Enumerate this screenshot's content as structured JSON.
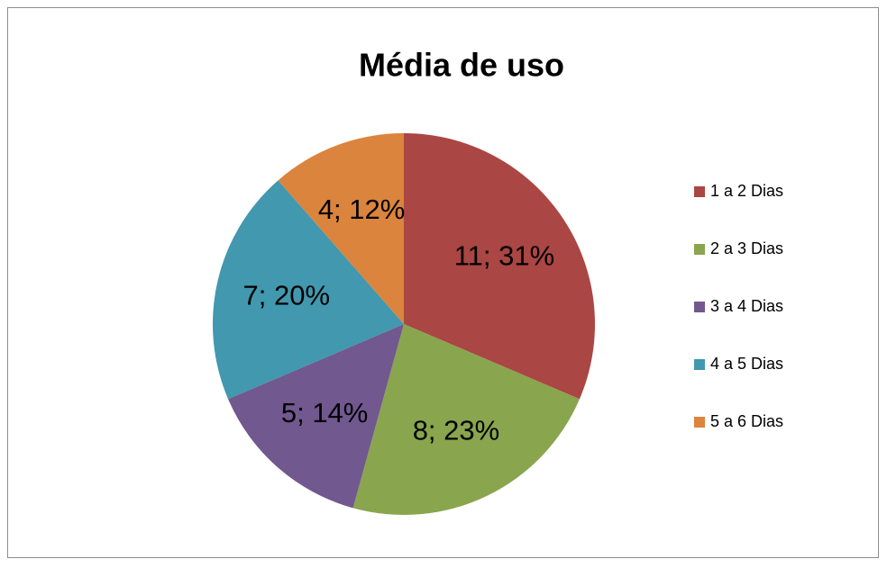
{
  "chart_data": {
    "type": "pie",
    "title": "Média de uso",
    "categories": [
      "1 a 2 Dias",
      "2 a 3 Dias",
      "3 a 4 Dias",
      "4 a 5 Dias",
      "5 a 6 Dias"
    ],
    "values": [
      11,
      8,
      5,
      7,
      4
    ],
    "value_labels": [
      "11; 31%",
      "8; 23%",
      "5; 14%",
      "7; 20%",
      "4; 12%"
    ],
    "colors": [
      "#aa4643",
      "#89a54e",
      "#71588f",
      "#4198af",
      "#db843d"
    ],
    "legend": "right"
  }
}
